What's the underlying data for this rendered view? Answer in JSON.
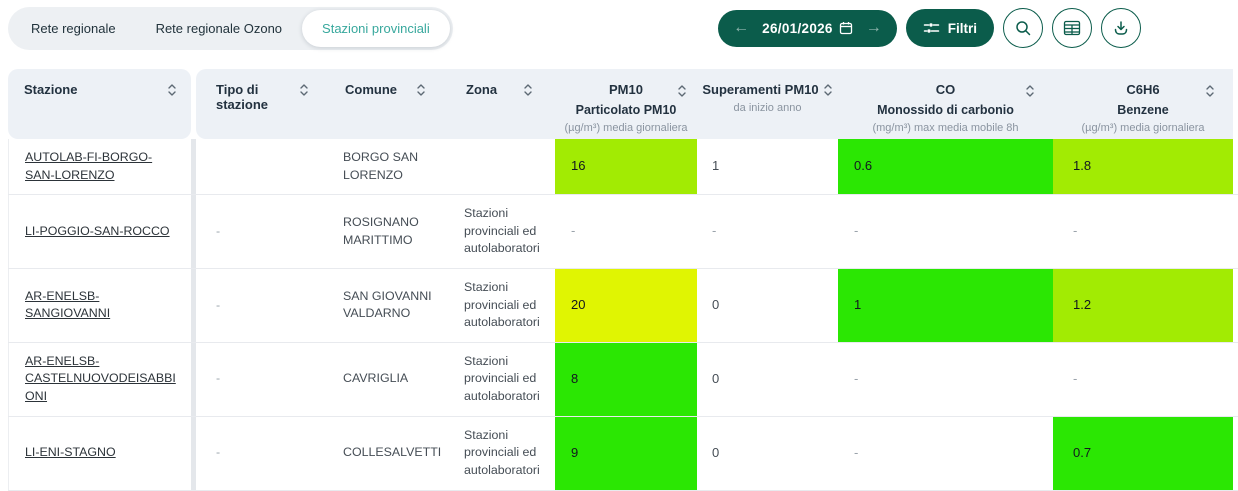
{
  "tabs": {
    "items": [
      {
        "label": "Rete regionale",
        "active": false
      },
      {
        "label": "Rete regionale Ozono",
        "active": false
      },
      {
        "label": "Stazioni provinciali",
        "active": true
      }
    ]
  },
  "toolbar": {
    "date": "26/01/2026",
    "prev_arrow": "←",
    "next_arrow": "→",
    "filters_label": "Filtri",
    "icon_buttons": [
      "search",
      "table-view",
      "download"
    ]
  },
  "colors": {
    "teal": "#0B5C4B",
    "teal_accent": "#38A89D",
    "header_bg": "#EDF1F6",
    "green": "#2BE703",
    "chartreuse": "#A2EB03",
    "yellow": "#E0F502"
  },
  "table": {
    "columns": [
      {
        "label": "Stazione",
        "sortable": true
      },
      {
        "label": "Tipo di stazione",
        "sortable": true
      },
      {
        "label": "Comune",
        "sortable": true
      },
      {
        "label": "Zona",
        "sortable": true
      },
      {
        "label": "PM10",
        "sub": "Particolato PM10",
        "unit": "(µg/m³) media giornaliera",
        "sortable": true
      },
      {
        "label": "Superamenti PM10",
        "sub": "da inizio anno",
        "unit": "",
        "sortable": true
      },
      {
        "label": "CO",
        "sub": "Monossido di carbonio",
        "unit": "(mg/m³) max media mobile 8h",
        "sortable": true
      },
      {
        "label": "C6H6",
        "sub": "Benzene",
        "unit": "(µg/m³) media giornaliera",
        "sortable": true
      }
    ],
    "rows": [
      {
        "stazione": "AUTOLAB-FI-BORGO-SAN-LORENZO",
        "tipo": "",
        "comune": "BORGO SAN LORENZO",
        "zona": "",
        "pm10": {
          "value": "16",
          "bg": "chartreuse"
        },
        "superamenti": "1",
        "co": {
          "value": "0.6",
          "bg": "green"
        },
        "c6h6": {
          "value": "1.8",
          "bg": "chartreuse"
        }
      },
      {
        "stazione": "LI-POGGIO-SAN-ROCCO",
        "tipo": "-",
        "comune": "ROSIGNANO MARITTIMO",
        "zona": "Stazioni provinciali ed autolaboratori",
        "pm10": {
          "value": "-",
          "bg": null
        },
        "superamenti": "-",
        "co": {
          "value": "-",
          "bg": null
        },
        "c6h6": {
          "value": "-",
          "bg": null
        }
      },
      {
        "stazione": "AR-ENELSB-SANGIOVANNI",
        "tipo": "-",
        "comune": "SAN GIOVANNI VALDARNO",
        "zona": "Stazioni provinciali ed autolaboratori",
        "pm10": {
          "value": "20",
          "bg": "yellow"
        },
        "superamenti": "0",
        "co": {
          "value": "1",
          "bg": "green"
        },
        "c6h6": {
          "value": "1.2",
          "bg": "chartreuse"
        }
      },
      {
        "stazione": "AR-ENELSB-CASTELNUOVODEISABBIONI",
        "tipo": "-",
        "comune": "CAVRIGLIA",
        "zona": "Stazioni provinciali ed autolaboratori",
        "pm10": {
          "value": "8",
          "bg": "green"
        },
        "superamenti": "0",
        "co": {
          "value": "-",
          "bg": null
        },
        "c6h6": {
          "value": "-",
          "bg": null
        }
      },
      {
        "stazione": "LI-ENI-STAGNO",
        "tipo": "-",
        "comune": "COLLESALVETTI",
        "zona": "Stazioni provinciali ed autolaboratori",
        "pm10": {
          "value": "9",
          "bg": "green"
        },
        "superamenti": "0",
        "co": {
          "value": "-",
          "bg": null
        },
        "c6h6": {
          "value": "0.7",
          "bg": "green"
        }
      }
    ]
  }
}
